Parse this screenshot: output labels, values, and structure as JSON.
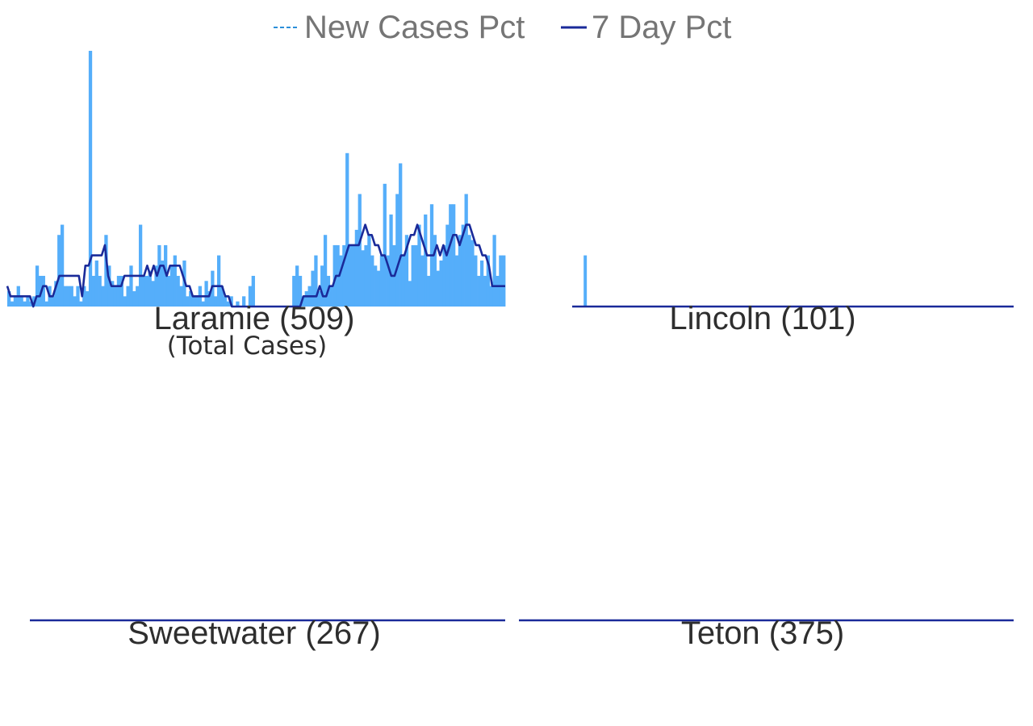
{
  "legend": {
    "new_cases_label": "New Cases Pct",
    "seven_day_label": "7 Day Pct"
  },
  "colors": {
    "bar": "#55aefa",
    "line": "#1a2a99",
    "legend_dash": "#2b8ed9",
    "title": "#2e2e2e",
    "legend_text": "#757575"
  },
  "chart_data": [
    {
      "type": "bar",
      "title": "Laramie (509)",
      "subtitle": "(Total Cases)",
      "series": [
        {
          "name": "New Cases Pct",
          "values": [
            0.06,
            0.02,
            0.04,
            0.08,
            0.04,
            0.02,
            0.04,
            0.02,
            0.04,
            0.16,
            0.12,
            0.12,
            0.02,
            0.08,
            0.04,
            0.1,
            0.28,
            0.32,
            0.08,
            0.08,
            0.08,
            0.04,
            0.08,
            0.02,
            0.08,
            0.06,
            1.0,
            0.12,
            0.18,
            0.12,
            0.08,
            0.28,
            0.16,
            0.1,
            0.08,
            0.12,
            0.12,
            0.04,
            0.08,
            0.16,
            0.06,
            0.08,
            0.32,
            0.12,
            0.12,
            0.14,
            0.1,
            0.16,
            0.24,
            0.18,
            0.24,
            0.12,
            0.16,
            0.2,
            0.12,
            0.08,
            0.18,
            0.04,
            0.06,
            0.04,
            0.04,
            0.08,
            0.02,
            0.1,
            0.06,
            0.14,
            0.04,
            0.2,
            0.08,
            0.04,
            0.02,
            0.04,
            0.0,
            0.02,
            0.0,
            0.04,
            0.0,
            0.08,
            0.12,
            0.0,
            0.0,
            0.0,
            0.0,
            0.0,
            0.0,
            0.0,
            0.0,
            0.0,
            0.0,
            0.0,
            0.0,
            0.12,
            0.16,
            0.12,
            0.04,
            0.06,
            0.08,
            0.14,
            0.2,
            0.06,
            0.16,
            0.28,
            0.12,
            0.08,
            0.24,
            0.24,
            0.2,
            0.24,
            0.6,
            0.24,
            0.24,
            0.3,
            0.44,
            0.22,
            0.24,
            0.28,
            0.2,
            0.16,
            0.14,
            0.2,
            0.48,
            0.2,
            0.36,
            0.24,
            0.44,
            0.56,
            0.2,
            0.28,
            0.1,
            0.24,
            0.24,
            0.32,
            0.2,
            0.36,
            0.12,
            0.4,
            0.28,
            0.14,
            0.18,
            0.24,
            0.32,
            0.4,
            0.4,
            0.2,
            0.28,
            0.32,
            0.44,
            0.28,
            0.26,
            0.2,
            0.12,
            0.18,
            0.12,
            0.2,
            0.08,
            0.28,
            0.12,
            0.2,
            0.2
          ]
        },
        {
          "name": "7 Day Pct",
          "values": [
            0.08,
            0.04,
            0.04,
            0.04,
            0.04,
            0.04,
            0.04,
            0.04,
            0.0,
            0.04,
            0.04,
            0.08,
            0.08,
            0.04,
            0.04,
            0.08,
            0.12,
            0.12,
            0.12,
            0.12,
            0.12,
            0.12,
            0.12,
            0.04,
            0.16,
            0.16,
            0.2,
            0.2,
            0.2,
            0.2,
            0.24,
            0.12,
            0.08,
            0.08,
            0.08,
            0.08,
            0.12,
            0.12,
            0.12,
            0.12,
            0.12,
            0.12,
            0.12,
            0.16,
            0.12,
            0.16,
            0.12,
            0.16,
            0.16,
            0.12,
            0.16,
            0.16,
            0.16,
            0.16,
            0.12,
            0.08,
            0.08,
            0.04,
            0.04,
            0.04,
            0.04,
            0.04,
            0.04,
            0.08,
            0.08,
            0.08,
            0.08,
            0.04,
            0.04,
            0.0,
            0.0,
            0.0,
            0.0,
            0.0,
            0.0,
            0.0,
            0.0,
            0.0,
            0.0,
            0.0,
            0.0,
            0.0,
            0.0,
            0.0,
            0.0,
            0.0,
            0.0,
            0.0,
            0.0,
            0.0,
            0.0,
            0.04,
            0.04,
            0.04,
            0.04,
            0.04,
            0.08,
            0.04,
            0.04,
            0.08,
            0.08,
            0.12,
            0.12,
            0.16,
            0.2,
            0.24,
            0.24,
            0.24,
            0.24,
            0.28,
            0.32,
            0.28,
            0.28,
            0.24,
            0.24,
            0.2,
            0.2,
            0.16,
            0.12,
            0.12,
            0.16,
            0.2,
            0.2,
            0.24,
            0.28,
            0.28,
            0.32,
            0.28,
            0.24,
            0.2,
            0.2,
            0.2,
            0.24,
            0.2,
            0.24,
            0.2,
            0.24,
            0.28,
            0.28,
            0.24,
            0.28,
            0.32,
            0.32,
            0.28,
            0.24,
            0.24,
            0.2,
            0.2,
            0.16,
            0.08,
            0.08,
            0.08,
            0.08,
            0.08
          ]
        }
      ]
    },
    {
      "type": "bar",
      "title": "Lincoln (101)",
      "series": [
        {
          "name": "New Cases Pct",
          "values": [
            0.0,
            0.0,
            0.0,
            0.0,
            0.2,
            0.0,
            0.0,
            0.0,
            0.0,
            0.0,
            0.0,
            0.0,
            0.0,
            0.0,
            0.0,
            0.0,
            0.0,
            0.0,
            0.0,
            0.0,
            0.0,
            0.0,
            0.0,
            0.0,
            0.0,
            0.0,
            0.0,
            0.0,
            0.0,
            0.0,
            0.0,
            0.0,
            0.0,
            0.0,
            0.0,
            0.0,
            0.0,
            0.0,
            0.0,
            0.0,
            0.0,
            0.0,
            0.0,
            0.0,
            0.0,
            0.0,
            0.0,
            0.0,
            0.0,
            0.0,
            0.0,
            0.0,
            0.0,
            0.0,
            0.0,
            0.0,
            0.0,
            0.0,
            0.0,
            0.0,
            0.0,
            0.0,
            0.0,
            0.0,
            0.0,
            0.0,
            0.0,
            0.0,
            0.0,
            0.0,
            0.0,
            0.0,
            0.0,
            0.0,
            0.0,
            0.0,
            0.0,
            0.0,
            0.0,
            0.0,
            0.0,
            0.0,
            0.0,
            0.0,
            0.0,
            0.0,
            0.0,
            0.0,
            0.0,
            0.0,
            0.0,
            0.0,
            0.0,
            0.0,
            0.0,
            0.0,
            0.0,
            0.0,
            0.0,
            0.0,
            0.0,
            0.0,
            0.0,
            0.0,
            0.0,
            0.0,
            0.0,
            0.0,
            0.0,
            0.0,
            0.0,
            0.0,
            0.0,
            0.0,
            0.0,
            0.0,
            0.0,
            0.0,
            0.0,
            0.0,
            0.0,
            0.0,
            0.0,
            0.0,
            0.0,
            0.0,
            0.0,
            0.0,
            0.0,
            0.0,
            0.0,
            0.0,
            0.0,
            0.0,
            0.0,
            0.0,
            0.0,
            0.0,
            0.0,
            0.0,
            0.0,
            0.0,
            0.0,
            0.0,
            0.0,
            0.0,
            0.0,
            0.0,
            0.0,
            0.0,
            0.0,
            0.0,
            0.0,
            0.0
          ]
        },
        {
          "name": "7 Day Pct",
          "values": [
            0.0
          ]
        }
      ]
    },
    {
      "type": "bar",
      "title": "Sweetwater (267)",
      "series": [
        {
          "name": "New Cases Pct",
          "values": [
            0.0
          ]
        },
        {
          "name": "7 Day Pct",
          "values": [
            0.0
          ]
        }
      ]
    },
    {
      "type": "bar",
      "title": "Teton (375)",
      "series": [
        {
          "name": "New Cases Pct",
          "values": [
            0.0
          ]
        },
        {
          "name": "7 Day Pct",
          "values": [
            0.0
          ]
        }
      ]
    }
  ]
}
